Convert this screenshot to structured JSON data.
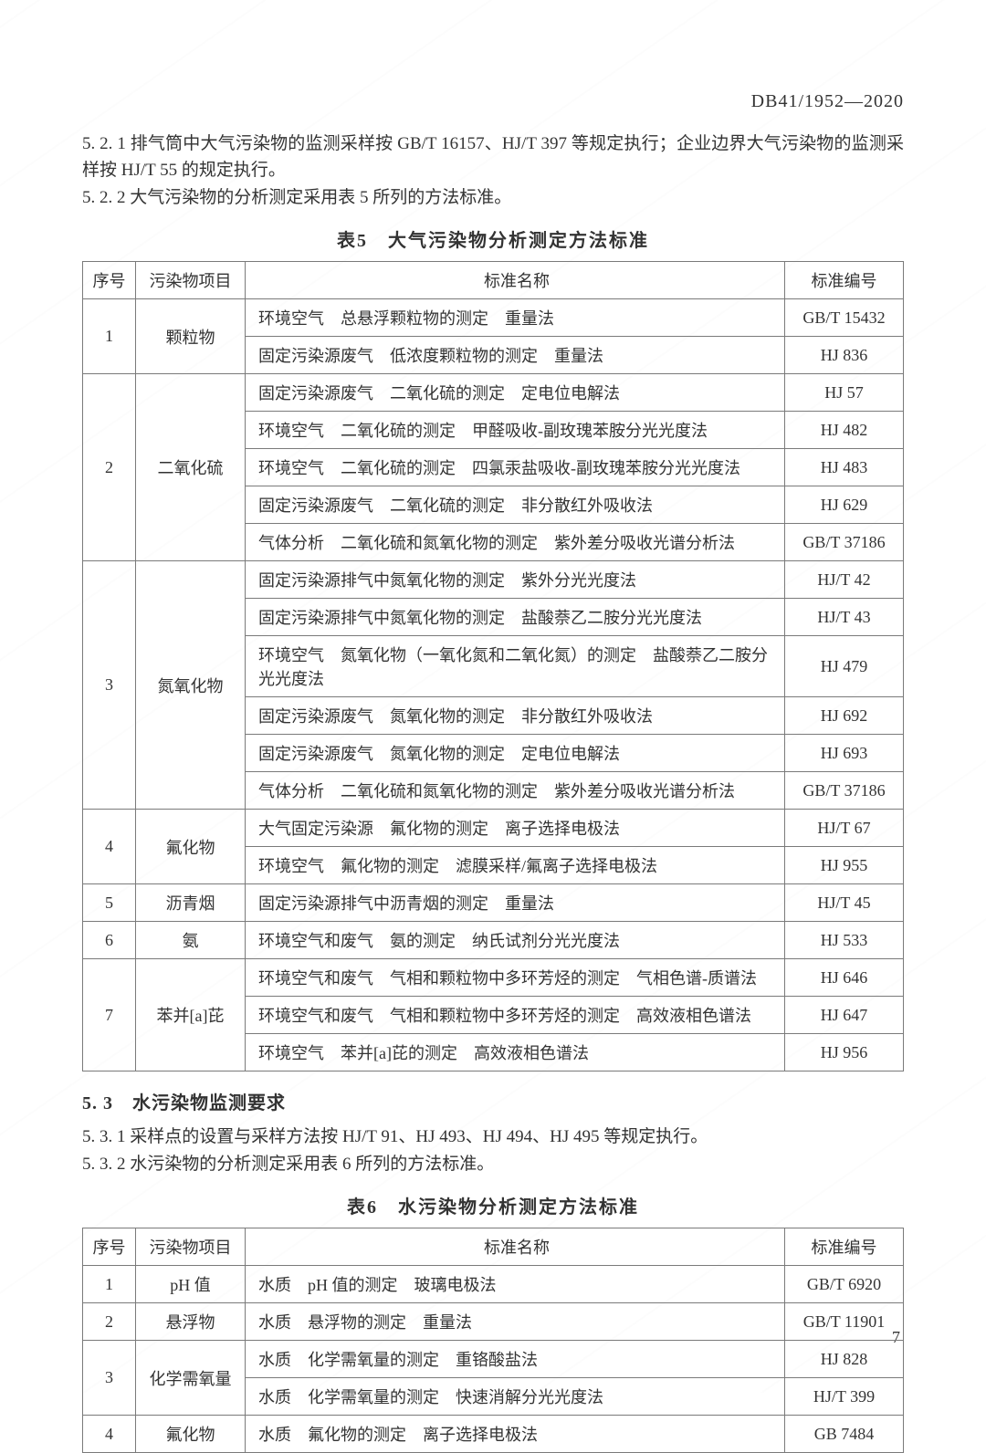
{
  "header": {
    "doc_id": "DB41/1952—2020"
  },
  "paragraphs": {
    "p_5_2_1_num": "5. 2. 1",
    "p_5_2_1": "排气筒中大气污染物的监测采样按 GB/T 16157、HJ/T 397 等规定执行；企业边界大气污染物的监测采样按 HJ/T 55 的规定执行。",
    "p_5_2_2_num": "5. 2. 2",
    "p_5_2_2": "大气污染物的分析测定采用表 5 所列的方法标准。",
    "p_5_3_1_num": "5. 3. 1",
    "p_5_3_1": "采样点的设置与采样方法按 HJ/T 91、HJ 493、HJ 494、HJ 495 等规定执行。",
    "p_5_3_2_num": "5. 3. 2",
    "p_5_3_2": "水污染物的分析测定采用表 6 所列的方法标准。"
  },
  "section_5_3": "5. 3　水污染物监测要求",
  "table5": {
    "caption": "表5　大气污染物分析测定方法标准",
    "columns": [
      "序号",
      "污染物项目",
      "标准名称",
      "标准编号"
    ],
    "groups": [
      {
        "seq": "1",
        "item": "颗粒物",
        "rows": [
          {
            "std": "环境空气　总悬浮颗粒物的测定　重量法",
            "code": "GB/T 15432"
          },
          {
            "std": "固定污染源废气　低浓度颗粒物的测定　重量法",
            "code": "HJ 836"
          }
        ]
      },
      {
        "seq": "2",
        "item": "二氧化硫",
        "rows": [
          {
            "std": "固定污染源废气　二氧化硫的测定　定电位电解法",
            "code": "HJ 57"
          },
          {
            "std": "环境空气　二氧化硫的测定　甲醛吸收-副玫瑰苯胺分光光度法",
            "code": "HJ 482"
          },
          {
            "std": "环境空气　二氧化硫的测定　四氯汞盐吸收-副玫瑰苯胺分光光度法",
            "code": "HJ 483"
          },
          {
            "std": "固定污染源废气　二氧化硫的测定　非分散红外吸收法",
            "code": "HJ 629"
          },
          {
            "std": "气体分析　二氧化硫和氮氧化物的测定　紫外差分吸收光谱分析法",
            "code": "GB/T 37186"
          }
        ]
      },
      {
        "seq": "3",
        "item": "氮氧化物",
        "rows": [
          {
            "std": "固定污染源排气中氮氧化物的测定　紫外分光光度法",
            "code": "HJ/T 42"
          },
          {
            "std": "固定污染源排气中氮氧化物的测定　盐酸萘乙二胺分光光度法",
            "code": "HJ/T 43"
          },
          {
            "std": "环境空气　氮氧化物（一氧化氮和二氧化氮）的测定　盐酸萘乙二胺分光光度法",
            "code": "HJ 479"
          },
          {
            "std": "固定污染源废气　氮氧化物的测定　非分散红外吸收法",
            "code": "HJ 692"
          },
          {
            "std": "固定污染源废气　氮氧化物的测定　定电位电解法",
            "code": "HJ 693"
          },
          {
            "std": "气体分析　二氧化硫和氮氧化物的测定　紫外差分吸收光谱分析法",
            "code": "GB/T 37186"
          }
        ]
      },
      {
        "seq": "4",
        "item": "氟化物",
        "rows": [
          {
            "std": "大气固定污染源　氟化物的测定　离子选择电极法",
            "code": "HJ/T 67"
          },
          {
            "std": "环境空气　氟化物的测定　滤膜采样/氟离子选择电极法",
            "code": "HJ 955"
          }
        ]
      },
      {
        "seq": "5",
        "item": "沥青烟",
        "rows": [
          {
            "std": "固定污染源排气中沥青烟的测定　重量法",
            "code": "HJ/T 45"
          }
        ]
      },
      {
        "seq": "6",
        "item": "氨",
        "rows": [
          {
            "std": "环境空气和废气　氨的测定　纳氏试剂分光光度法",
            "code": "HJ 533"
          }
        ]
      },
      {
        "seq": "7",
        "item": "苯并[a]芘",
        "rows": [
          {
            "std": "环境空气和废气　气相和颗粒物中多环芳烃的测定　气相色谱-质谱法",
            "code": "HJ 646"
          },
          {
            "std": "环境空气和废气　气相和颗粒物中多环芳烃的测定　高效液相色谱法",
            "code": "HJ 647"
          },
          {
            "std": "环境空气　苯并[a]芘的测定　高效液相色谱法",
            "code": "HJ 956"
          }
        ]
      }
    ]
  },
  "table6": {
    "caption": "表6　水污染物分析测定方法标准",
    "columns": [
      "序号",
      "污染物项目",
      "标准名称",
      "标准编号"
    ],
    "groups": [
      {
        "seq": "1",
        "item": "pH 值",
        "rows": [
          {
            "std": "水质　pH 值的测定　玻璃电极法",
            "code": "GB/T 6920"
          }
        ]
      },
      {
        "seq": "2",
        "item": "悬浮物",
        "rows": [
          {
            "std": "水质　悬浮物的测定　重量法",
            "code": "GB/T 11901"
          }
        ]
      },
      {
        "seq": "3",
        "item": "化学需氧量",
        "rows": [
          {
            "std": "水质　化学需氧量的测定　重铬酸盐法",
            "code": "HJ 828"
          },
          {
            "std": "水质　化学需氧量的测定　快速消解分光光度法",
            "code": "HJ/T 399"
          }
        ]
      },
      {
        "seq": "4",
        "item": "氟化物",
        "rows": [
          {
            "std": "水质　氟化物的测定　离子选择电极法",
            "code": "GB 7484"
          }
        ]
      }
    ]
  },
  "page_number": "7"
}
